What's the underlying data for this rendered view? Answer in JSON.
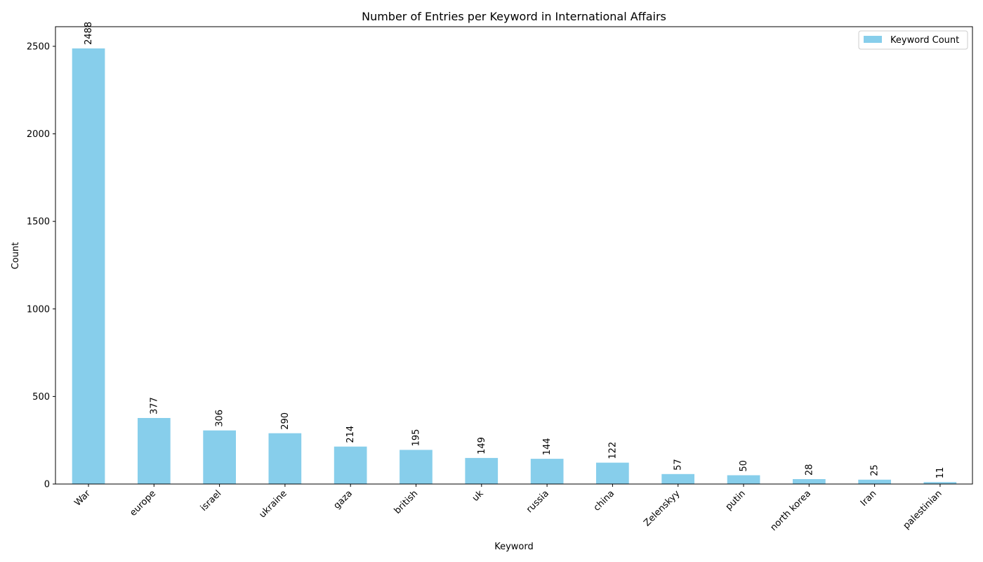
{
  "chart_data": {
    "type": "bar",
    "title": "Number of Entries per Keyword in International Affairs",
    "xlabel": "Keyword",
    "ylabel": "Count",
    "categories": [
      "War",
      "europe",
      "israel",
      "ukraine",
      "gaza",
      "british",
      "uk",
      "russia",
      "china",
      "Zelenskyy",
      "putin",
      "north korea",
      "Iran",
      "palestinian"
    ],
    "series": [
      {
        "name": "Keyword Count",
        "values": [
          2488,
          377,
          306,
          290,
          214,
          195,
          149,
          144,
          122,
          57,
          50,
          28,
          25,
          11
        ]
      }
    ],
    "ylim": [
      0,
      2612
    ],
    "yticks": [
      0,
      500,
      1000,
      1500,
      2000,
      2500
    ],
    "grid": false,
    "legend_position": "top-right",
    "bar_color": "#87CEEB",
    "data_labels": true
  }
}
